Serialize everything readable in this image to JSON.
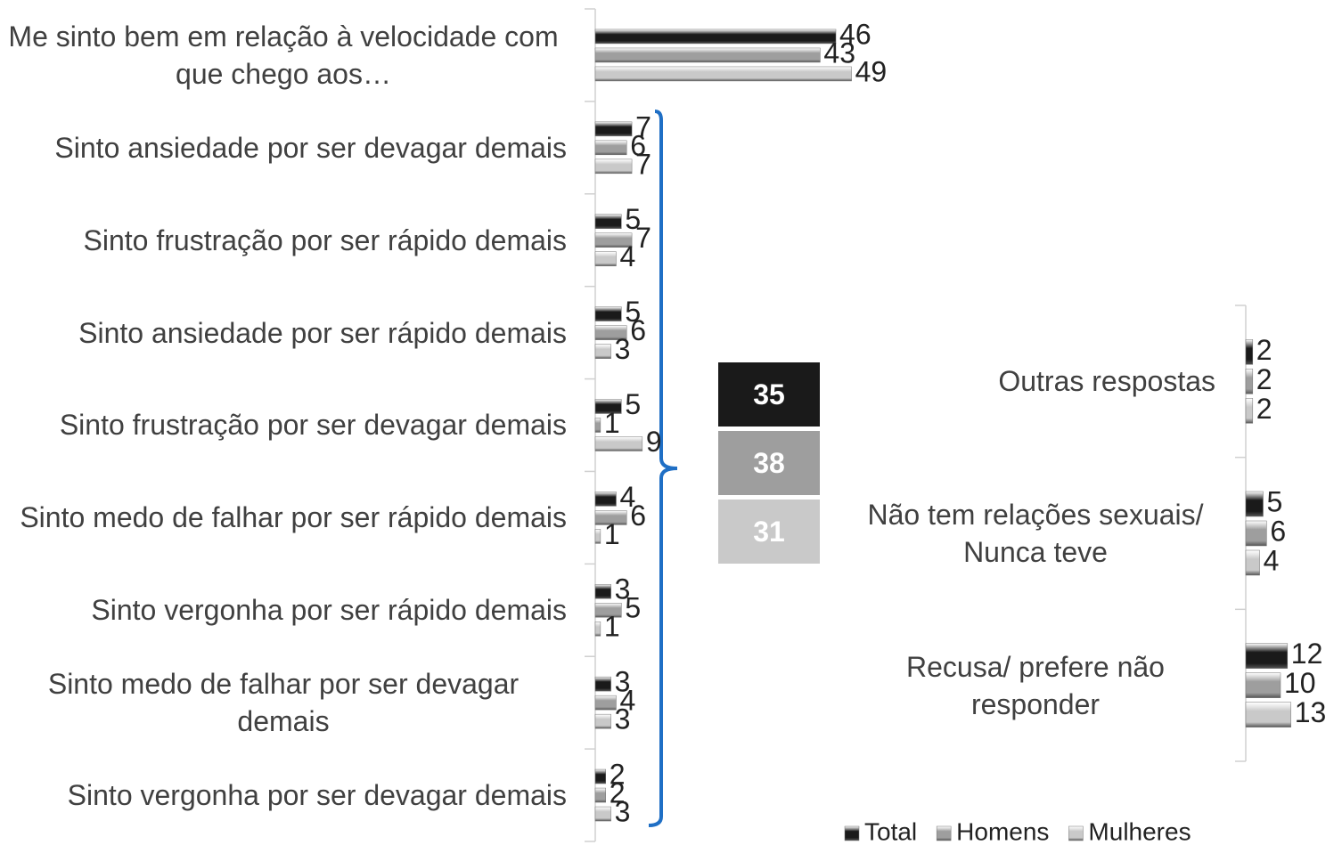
{
  "chart_data": [
    {
      "type": "bar",
      "orientation": "horizontal",
      "categories": [
        "Me sinto bem em relação à velocidade com que chego aos…",
        "Sinto ansiedade por ser devagar demais",
        "Sinto frustração por ser rápido demais",
        "Sinto ansiedade por ser rápido demais",
        "Sinto frustração por ser devagar demais",
        "Sinto medo de falhar por ser rápido demais",
        "Sinto vergonha por ser rápido demais",
        "Sinto medo de falhar por ser devagar demais",
        "Sinto vergonha por ser devagar demais"
      ],
      "series": [
        {
          "name": "Total",
          "color": "#1a1a1a",
          "values": [
            46,
            7,
            5,
            5,
            5,
            4,
            3,
            3,
            2
          ]
        },
        {
          "name": "Homens",
          "color": "#9e9e9e",
          "values": [
            43,
            6,
            7,
            6,
            1,
            6,
            5,
            4,
            2
          ]
        },
        {
          "name": "Mulheres",
          "color": "#c9c9c9",
          "values": [
            49,
            7,
            4,
            3,
            9,
            1,
            1,
            3,
            3
          ]
        }
      ],
      "xlim": [
        0,
        100
      ],
      "summary": {
        "values": [
          35,
          38,
          31
        ]
      },
      "legend": "bottom-right"
    },
    {
      "type": "bar",
      "orientation": "horizontal",
      "categories": [
        "Outras respostas",
        "Não tem relações sexuais/ Nunca teve",
        "Recusa/ prefere não responder"
      ],
      "series": [
        {
          "name": "Total",
          "color": "#1a1a1a",
          "values": [
            2,
            5,
            12
          ]
        },
        {
          "name": "Homens",
          "color": "#9e9e9e",
          "values": [
            2,
            6,
            10
          ]
        },
        {
          "name": "Mulheres",
          "color": "#c9c9c9",
          "values": [
            2,
            4,
            13
          ]
        }
      ],
      "xlim": [
        0,
        100
      ]
    }
  ]
}
